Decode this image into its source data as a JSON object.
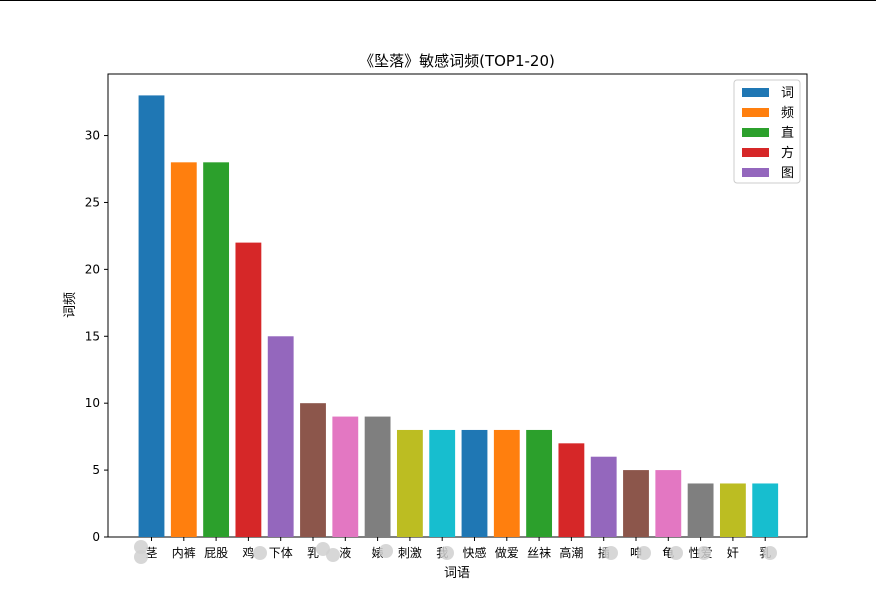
{
  "chart_data": {
    "type": "bar",
    "title": "《坠落》敏感词频(TOP1-20)",
    "xlabel": "词语",
    "ylabel": "词频",
    "ylim": [
      0,
      34.6
    ],
    "yticks": [
      0,
      5,
      10,
      15,
      20,
      25,
      30
    ],
    "categories": [
      "阴茎",
      "内裤",
      "屁股",
      "鸡巴",
      "下体",
      "乳头",
      "精液",
      "婊子",
      "刺激",
      "我操",
      "快感",
      "做爱",
      "丝袜",
      "高潮",
      "插入",
      "呻吟",
      "龟头",
      "性爱",
      "强奸",
      "乳房"
    ],
    "visible_labels": [
      "茎",
      "内裤",
      "屁股",
      "鸡",
      "下体",
      "乳",
      "液",
      "婊",
      "刺激",
      "我",
      "快感",
      "做爱",
      "丝袜",
      "高潮",
      "插",
      "呻",
      "龟",
      "性爱",
      "奸",
      "乳"
    ],
    "values": [
      33,
      28,
      28,
      22,
      15,
      10,
      9,
      9,
      8,
      8,
      8,
      8,
      8,
      7,
      6,
      5,
      5,
      4,
      4,
      4
    ],
    "colors": [
      "#1f77b4",
      "#ff7f0e",
      "#2ca02c",
      "#d62728",
      "#9467bd",
      "#8c564b",
      "#e377c2",
      "#7f7f7f",
      "#bcbd22",
      "#17becf"
    ],
    "grid": false,
    "legend": {
      "placement": "top-right",
      "entries": [
        {
          "label": "词",
          "color": "#1f77b4"
        },
        {
          "label": "频",
          "color": "#ff7f0e"
        },
        {
          "label": "直",
          "color": "#2ca02c"
        },
        {
          "label": "方",
          "color": "#d62728"
        },
        {
          "label": "图",
          "color": "#9467bd"
        }
      ]
    }
  }
}
